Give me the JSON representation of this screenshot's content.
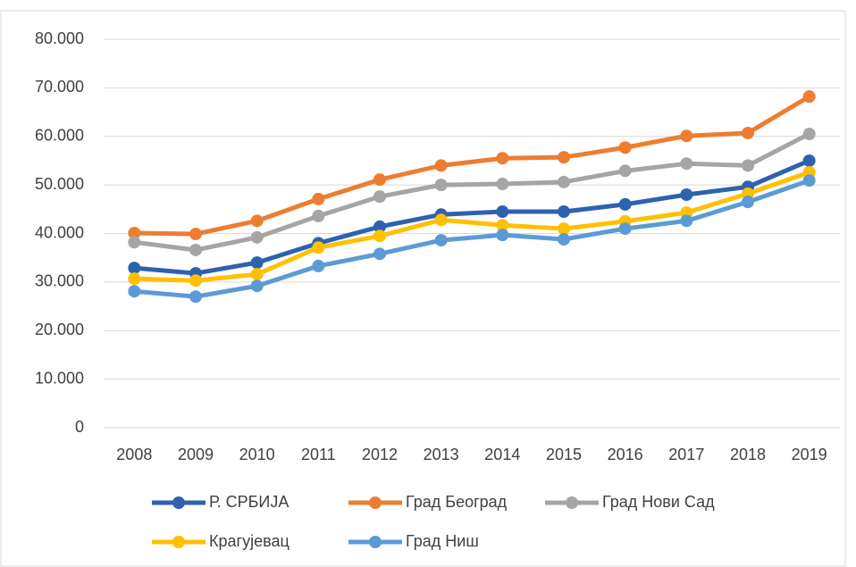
{
  "chart_data": {
    "type": "line",
    "categories": [
      "2008",
      "2009",
      "2010",
      "2011",
      "2012",
      "2013",
      "2014",
      "2015",
      "2016",
      "2017",
      "2018",
      "2019"
    ],
    "series": [
      {
        "name": "Р. СРБИЈА",
        "color": "#2e62b0",
        "values": [
          32900,
          31800,
          34000,
          38000,
          41400,
          43900,
          44500,
          44500,
          46000,
          48000,
          49600,
          55000
        ]
      },
      {
        "name": "Град Београд",
        "color": "#ed7d31",
        "values": [
          40100,
          39900,
          42600,
          47100,
          51100,
          54000,
          55500,
          55700,
          57700,
          60100,
          60700,
          68200
        ]
      },
      {
        "name": "Град Нови Сад",
        "color": "#a5a5a5",
        "values": [
          38200,
          36600,
          39200,
          43600,
          47600,
          50000,
          50200,
          50600,
          52900,
          54400,
          54000,
          60500
        ]
      },
      {
        "name": "Крагујевац",
        "color": "#ffc000",
        "values": [
          30700,
          30300,
          31600,
          37100,
          39500,
          42800,
          41700,
          41000,
          42500,
          44300,
          48200,
          52600
        ]
      },
      {
        "name": "Град Ниш",
        "color": "#5b9bd5",
        "values": [
          28100,
          27000,
          29200,
          33300,
          35800,
          38600,
          39700,
          38800,
          41000,
          42600,
          46500,
          50900
        ]
      }
    ],
    "ylim": [
      0,
      80000
    ],
    "yticks": [
      0,
      {
        "value": 10000,
        "label": "10.000"
      },
      {
        "value": 20000,
        "label": "20.000"
      },
      {
        "value": 30000,
        "label": "30.000"
      },
      {
        "value": 40000,
        "label": "40.000"
      },
      {
        "value": 50000,
        "label": "50.000"
      },
      {
        "value": 60000,
        "label": "60.000"
      },
      {
        "value": 70000,
        "label": "70.000"
      },
      {
        "value": 80000,
        "label": "80.000"
      }
    ],
    "grid": true
  }
}
